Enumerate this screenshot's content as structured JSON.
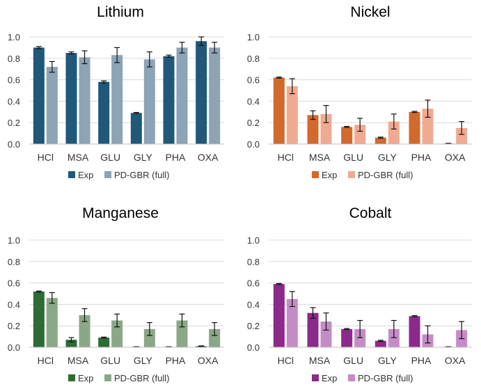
{
  "chart_data": [
    {
      "type": "bar",
      "title": "Lithium",
      "categories": [
        "HCl",
        "MSA",
        "GLU",
        "GLY",
        "PHA",
        "OXA"
      ],
      "ylim": [
        0,
        1.0
      ],
      "yticks": [
        "0.0",
        "0.2",
        "0.4",
        "0.6",
        "0.8",
        "1.0"
      ],
      "grid": true,
      "legend_position": "bottom",
      "series": [
        {
          "name": "Exp",
          "color": "#1f5878",
          "values": [
            0.9,
            0.85,
            0.58,
            0.29,
            0.82,
            0.96
          ],
          "errors": [
            0.01,
            0.01,
            0.01,
            0.005,
            0.01,
            0.04
          ]
        },
        {
          "name": "PD-GBR (full)",
          "color": "#8da3b6",
          "values": [
            0.72,
            0.81,
            0.83,
            0.79,
            0.9,
            0.9
          ],
          "errors": [
            0.05,
            0.06,
            0.07,
            0.07,
            0.05,
            0.05
          ]
        }
      ]
    },
    {
      "type": "bar",
      "title": "Nickel",
      "categories": [
        "HCl",
        "MSA",
        "GLU",
        "GLY",
        "PHA",
        "OXA"
      ],
      "ylim": [
        0,
        1.0
      ],
      "yticks": [
        "0.0",
        "0.2",
        "0.4",
        "0.6",
        "0.8",
        "1.0"
      ],
      "grid": true,
      "legend_position": "bottom",
      "series": [
        {
          "name": "Exp",
          "color": "#d2692d",
          "values": [
            0.62,
            0.27,
            0.16,
            0.06,
            0.3,
            0.005
          ],
          "errors": [
            0.005,
            0.04,
            0.005,
            0.005,
            0.005,
            0.002
          ]
        },
        {
          "name": "PD-GBR (full)",
          "color": "#f0aa92",
          "values": [
            0.54,
            0.28,
            0.18,
            0.21,
            0.33,
            0.15
          ],
          "errors": [
            0.07,
            0.08,
            0.06,
            0.07,
            0.08,
            0.06
          ]
        }
      ]
    },
    {
      "type": "bar",
      "title": "Manganese",
      "categories": [
        "HCl",
        "MSA",
        "GLU",
        "GLY",
        "PHA",
        "OXA"
      ],
      "ylim": [
        0,
        1.0
      ],
      "yticks": [
        "0.0",
        "0.2",
        "0.4",
        "0.6",
        "0.8",
        "1.0"
      ],
      "grid": true,
      "legend_position": "bottom",
      "series": [
        {
          "name": "Exp",
          "color": "#2e6b35",
          "values": [
            0.52,
            0.07,
            0.09,
            0.003,
            0.003,
            0.01
          ],
          "errors": [
            0.005,
            0.02,
            0.005,
            0.002,
            0.002,
            0.003
          ]
        },
        {
          "name": "PD-GBR (full)",
          "color": "#8aa887",
          "values": [
            0.46,
            0.3,
            0.25,
            0.17,
            0.25,
            0.17
          ],
          "errors": [
            0.05,
            0.06,
            0.06,
            0.06,
            0.06,
            0.06
          ]
        }
      ]
    },
    {
      "type": "bar",
      "title": "Cobalt",
      "categories": [
        "HCl",
        "MSA",
        "GLU",
        "GLY",
        "PHA",
        "OXA"
      ],
      "ylim": [
        0,
        1.0
      ],
      "yticks": [
        "0.0",
        "0.2",
        "0.4",
        "0.6",
        "0.8",
        "1.0"
      ],
      "grid": true,
      "legend_position": "bottom",
      "series": [
        {
          "name": "Exp",
          "color": "#8b2a8a",
          "values": [
            0.59,
            0.32,
            0.17,
            0.06,
            0.29,
            0.003
          ],
          "errors": [
            0.005,
            0.05,
            0.005,
            0.005,
            0.005,
            0.002
          ]
        },
        {
          "name": "PD-GBR (full)",
          "color": "#c48cc6",
          "values": [
            0.45,
            0.24,
            0.17,
            0.17,
            0.12,
            0.16
          ],
          "errors": [
            0.07,
            0.08,
            0.08,
            0.08,
            0.08,
            0.08
          ]
        }
      ]
    }
  ]
}
